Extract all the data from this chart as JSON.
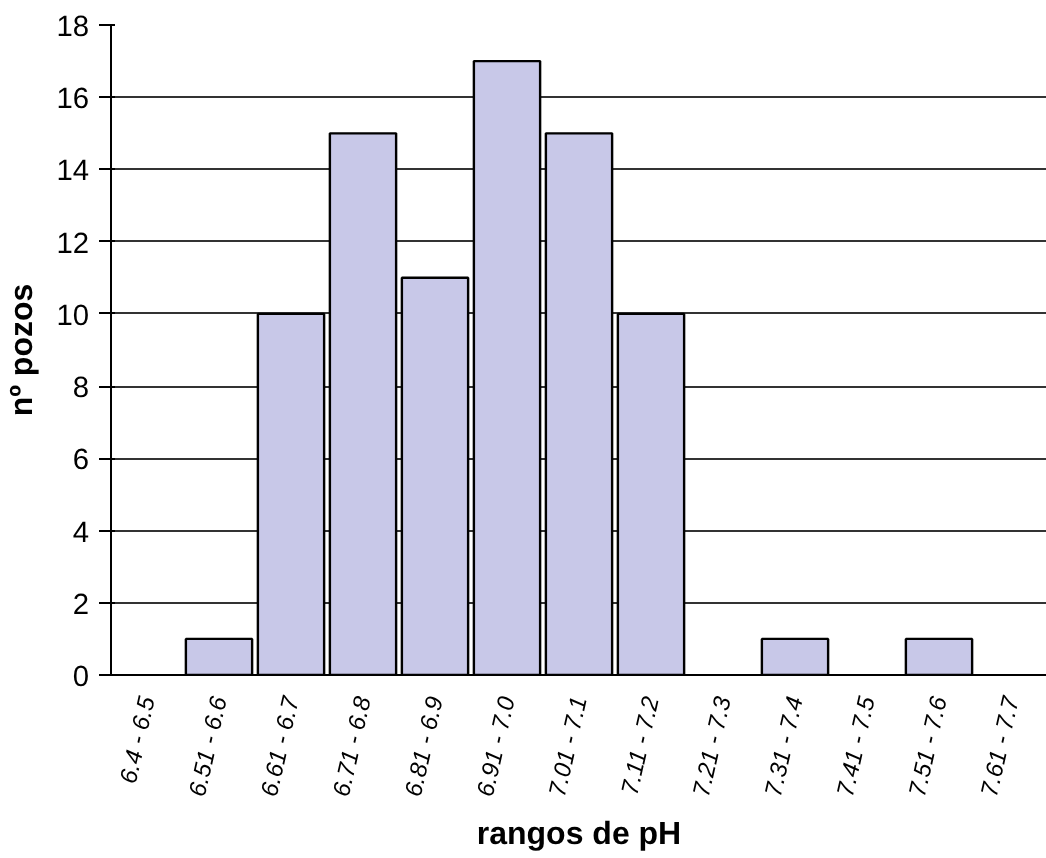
{
  "chart_data": {
    "type": "bar",
    "xlabel": "rangos de pH",
    "ylabel": "nº pozos",
    "categories": [
      "6.4 - 6.5",
      "6.51 - 6.6",
      "6.61 - 6.7",
      "6.71 - 6.8",
      "6.81 - 6.9",
      "6.91 - 7.0",
      "7.01 - 7.1",
      "7.11 - 7.2",
      "7.21 - 7.3",
      "7.31 - 7.4",
      "7.41 - 7.5",
      "7.51 - 7.6",
      "7.61 - 7.7"
    ],
    "values": [
      0,
      1,
      10,
      15,
      11,
      17,
      15,
      10,
      0,
      1,
      0,
      1,
      0
    ],
    "color": "#c8c8e8",
    "ylim": [
      0,
      18
    ],
    "yticks": [
      0,
      2,
      4,
      6,
      8,
      10,
      12,
      14,
      16,
      18
    ],
    "grid": "y"
  }
}
